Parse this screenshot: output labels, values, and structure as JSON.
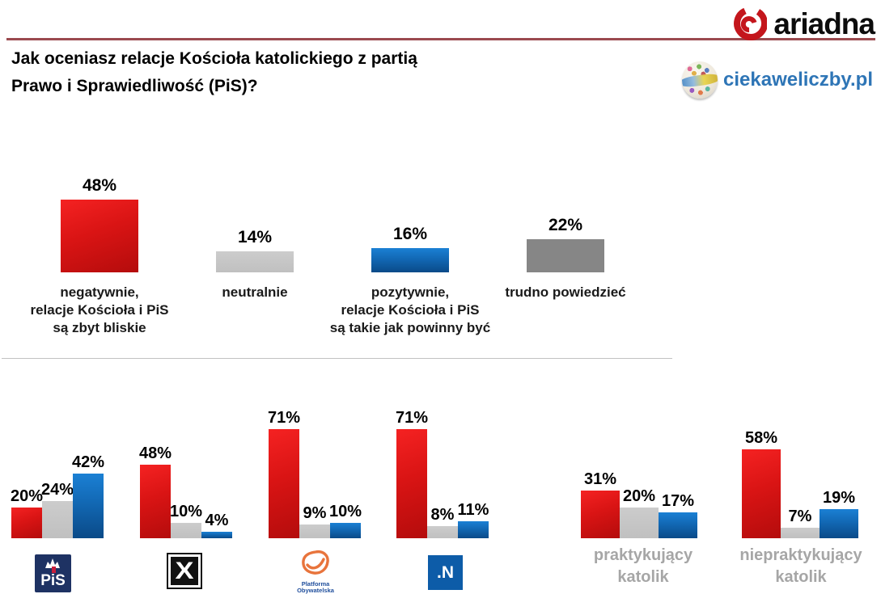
{
  "header": {
    "title_line1": "Jak oceniasz relacje Kościoła katolickiego z partią",
    "title_line2": "Prawo i Sprawiedliwość (PiS)?",
    "brand_ariadna": "ariadna",
    "brand_ciekaweliczby": "ciekaweliczby.pl"
  },
  "colors": {
    "accent_line": "#9B4A4F",
    "bar_red": "#D41414",
    "bar_blue": "#1268B4",
    "bar_gray_light": "#C5C5C5",
    "bar_gray_dark": "#868686",
    "group_label_gray": "#A6A6A6",
    "ciekawe_blue": "#2E75B6",
    "ariadna_red": "#C4161C"
  },
  "chart_data": [
    {
      "type": "bar",
      "title": "Jak oceniasz relacje Kościoła katolickiego z partią Prawo i Sprawiedliwość (PiS)?",
      "categories": [
        "negatywnie,\nrelacje Kościoła i PiS\nsą zbyt bliskie",
        "neutralnie",
        "pozytywnie,\nrelacje Kościoła i PiS\nsą takie jak powinny być",
        "trudno powiedzieć"
      ],
      "values": [
        48,
        14,
        16,
        22
      ],
      "data_labels": [
        "48%",
        "14%",
        "16%",
        "22%"
      ],
      "unit": "%",
      "bar_colors": [
        "red",
        "gray-light",
        "blue",
        "gray-dark"
      ],
      "ylim": [
        0,
        100
      ],
      "grid": false,
      "legend": false
    },
    {
      "type": "bar",
      "categories": [
        "PiS",
        "Kukiz'15",
        "Platforma Obywatelska",
        "Nowoczesna .N",
        "praktykujący katolik",
        "niepraktykujący katolik"
      ],
      "series": [
        {
          "name": "negatywnie",
          "color": "red",
          "values": [
            20,
            48,
            71,
            71,
            31,
            58
          ]
        },
        {
          "name": "neutralnie",
          "color": "gray-light",
          "values": [
            24,
            10,
            9,
            8,
            20,
            7
          ]
        },
        {
          "name": "pozytywnie",
          "color": "blue",
          "values": [
            42,
            4,
            10,
            11,
            17,
            19
          ]
        }
      ],
      "unit": "%",
      "ylim": [
        0,
        100
      ],
      "grid": false,
      "legend": false,
      "text_labels": [
        "praktykujący\nkatolik",
        "niepraktykujący\nkatolik"
      ]
    }
  ],
  "logos": {
    "pis_text": "PiS",
    "kukiz_text": "X",
    "po_text": "Platforma\nObywatelska",
    "nowoczesna_text": ".N"
  }
}
